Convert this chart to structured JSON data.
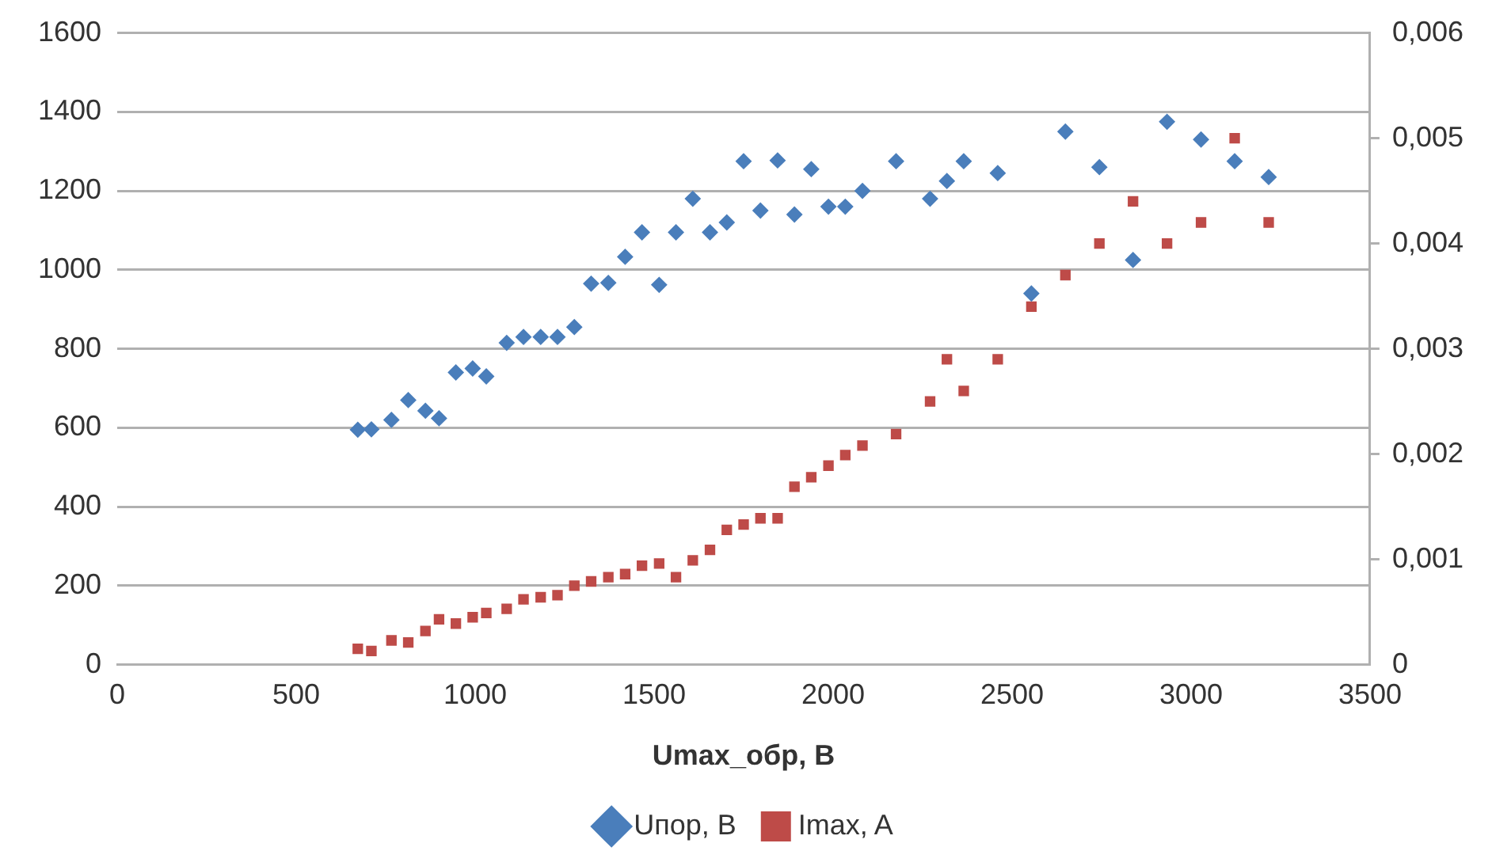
{
  "chart_data": {
    "type": "scatter",
    "xlabel": "Umax_обр, В",
    "x": [
      672,
      710,
      766,
      813,
      861,
      899,
      946,
      993,
      1031,
      1088,
      1135,
      1183,
      1230,
      1277,
      1324,
      1372,
      1419,
      1466,
      1514,
      1561,
      1608,
      1656,
      1703,
      1750,
      1797,
      1845,
      1892,
      1939,
      1987,
      2034,
      2082,
      2176,
      2271,
      2318,
      2365,
      2460,
      2554,
      2649,
      2744,
      2838,
      2933,
      3028,
      3122,
      3217
    ],
    "series": [
      {
        "name": "Uпор, В",
        "color": "#4a7ebb",
        "marker": "diamond",
        "values": [
          595,
          596,
          620,
          670,
          643,
          624,
          740,
          750,
          730,
          815,
          830,
          830,
          830,
          855,
          965,
          967,
          1033,
          1095,
          962,
          1095,
          1180,
          1095,
          1120,
          1275,
          1150,
          1277,
          1140,
          1255,
          1160,
          1160,
          1200,
          1275,
          1180,
          1225,
          1275,
          1245,
          940,
          1350,
          1260,
          1025,
          1375,
          1330,
          1275,
          1235
        ]
      },
      {
        "name": "Imax, A",
        "color": "#be4b48",
        "marker": "square",
        "axis": "y2",
        "values": [
          0.00015,
          0.00013,
          0.00023,
          0.00021,
          0.00032,
          0.00043,
          0.00039,
          0.00045,
          0.00049,
          0.00053,
          0.00062,
          0.00064,
          0.00066,
          0.00075,
          0.00079,
          0.00083,
          0.00086,
          0.00094,
          0.00096,
          0.00083,
          0.00099,
          0.00109,
          0.00128,
          0.00133,
          0.00139,
          0.00139,
          0.00169,
          0.00178,
          0.00189,
          0.00199,
          0.00208,
          0.00219,
          0.0025,
          0.0029,
          0.0026,
          0.0029,
          0.0034,
          0.0037,
          0.004,
          0.0044,
          0.004,
          0.0042,
          0.005,
          0.0042
        ]
      }
    ],
    "xlim": [
      0,
      3500
    ],
    "xticks": [
      0,
      500,
      1000,
      1500,
      2000,
      2500,
      3000,
      3500
    ],
    "ylim": [
      0,
      1600
    ],
    "yticks": [
      0,
      200,
      400,
      600,
      800,
      1000,
      1200,
      1400,
      1600
    ],
    "y2lim": [
      0,
      0.006
    ],
    "y2ticks": [
      0,
      {
        "value": 0.001,
        "label": "0,001"
      },
      {
        "value": 0.002,
        "label": "0,002"
      },
      {
        "value": 0.003,
        "label": "0,003"
      },
      {
        "value": 0.004,
        "label": "0,004"
      },
      {
        "value": 0.005,
        "label": "0,005"
      },
      {
        "value": 0.006,
        "label": "0,006"
      }
    ],
    "grid": "y",
    "legend": "bottom"
  }
}
